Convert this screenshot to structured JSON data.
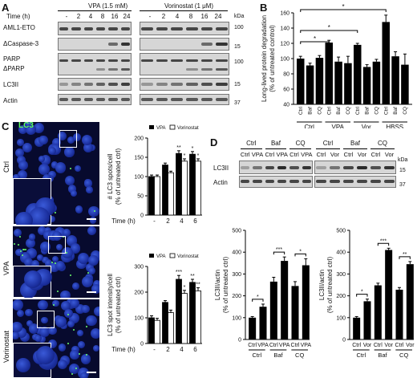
{
  "panels": {
    "A": "A",
    "B": "B",
    "C": "C",
    "D": "D"
  },
  "panelA": {
    "group1": "VPA (1.5 mM)",
    "group2": "Vorinostat (1 μM)",
    "time_label": "Time (h)",
    "times": [
      "-",
      "2",
      "4",
      "8",
      "16",
      "24"
    ],
    "kda": "kDa",
    "rows": [
      "AML1-ETO",
      "ΔCaspase-3",
      "PARP",
      "ΔPARP",
      "LC3II",
      "Actin"
    ],
    "mw": [
      "100",
      "15",
      "100",
      "15",
      "37"
    ]
  },
  "panelB": {
    "ylabel_1": "Long-lived protein degradation",
    "ylabel_2": "(% of untreated control)",
    "yticks": [
      "40",
      "60",
      "80",
      "100",
      "120",
      "140",
      "160"
    ],
    "bar_labels": [
      "Ctrl",
      "Baf",
      "CQ",
      "Ctrl",
      "Baf",
      "CQ",
      "Ctrl",
      "Baf",
      "CQ",
      "Ctrl",
      "Baf",
      "CQ"
    ],
    "groups": [
      "Ctrl",
      "VPA",
      "Vor",
      "HBSS"
    ],
    "star": "*"
  },
  "panelC": {
    "lc3_label": "LC3",
    "rows": [
      "Ctrl",
      "VPA",
      "Vorinostat"
    ],
    "legend_vpa": "VPA",
    "legend_vor": "Vorinostat",
    "chart1_ylabel_1": "# LC3 spots/cell",
    "chart1_ylabel_2": "(% of untreated ctrl)",
    "chart1_yticks": [
      "0",
      "50",
      "100",
      "150",
      "200"
    ],
    "chart2_ylabel_1": "LC3 spot intensity/cell",
    "chart2_ylabel_2": "(% of untreated ctrl)",
    "chart2_yticks": [
      "0",
      "100",
      "200",
      "300"
    ],
    "time_label": "Time (h)",
    "times": [
      "-",
      "2",
      "4",
      "6"
    ],
    "stars": {
      "s1": "**",
      "s2": "*",
      "s3": "*",
      "s4": "*",
      "s5": "***",
      "s6": "*",
      "s7": "**",
      "s8": "**"
    }
  },
  "panelD": {
    "blot_groups_left": [
      "Ctrl",
      "Baf",
      "CQ"
    ],
    "blot_lanes_left": [
      "Ctrl",
      "VPA",
      "Ctrl",
      "VPA",
      "Ctrl",
      "VPA"
    ],
    "blot_groups_right": [
      "Ctrl",
      "Baf",
      "CQ"
    ],
    "blot_lanes_right": [
      "Ctrl",
      "Vor",
      "Ctrl",
      "Vor",
      "Ctrl",
      "Vor"
    ],
    "rows": [
      "LC3II",
      "Actin"
    ],
    "kda": "kDa",
    "mw": [
      "15",
      "37"
    ],
    "ylabel_1": "LC3II/actin",
    "ylabel_2": "(% of untreated ctrl)",
    "yticks": [
      "0",
      "100",
      "200",
      "300",
      "400",
      "500"
    ],
    "left_lanes": [
      "Ctrl",
      "VPA",
      "Ctrl",
      "VPA",
      "Ctrl",
      "VPA"
    ],
    "right_lanes": [
      "Ctrl",
      "Vor",
      "Ctrl",
      "Vor",
      "Ctrl",
      "Vor"
    ],
    "groups": [
      "Ctrl",
      "Baf",
      "CQ"
    ],
    "stars": {
      "l1": "*",
      "l2": "***",
      "l3": "*",
      "r1": "*",
      "r2": "***",
      "r3": "**"
    }
  },
  "chart_data": [
    {
      "type": "bar",
      "panel": "B",
      "ylabel": "Long-lived protein degradation (% of untreated control)",
      "ylim": [
        40,
        160
      ],
      "categories": [
        "Ctrl",
        "Baf",
        "CQ",
        "Ctrl",
        "Baf",
        "CQ",
        "Ctrl",
        "Baf",
        "CQ",
        "Ctrl",
        "Baf",
        "CQ"
      ],
      "groups": [
        "Ctrl",
        "VPA",
        "Vor",
        "HBSS"
      ],
      "values": [
        100,
        91,
        101,
        121,
        96,
        94,
        118,
        89,
        96,
        148,
        103,
        92
      ],
      "errors": [
        3,
        3,
        3,
        3,
        6,
        9,
        2,
        3,
        3,
        9,
        6,
        14
      ]
    },
    {
      "type": "bar",
      "panel": "C-top",
      "ylabel": "# LC3 spots/cell (% of untreated ctrl)",
      "xlabel": "Time (h)",
      "ylim": [
        0,
        200
      ],
      "categories": [
        "-",
        "2",
        "4",
        "6"
      ],
      "series": [
        {
          "name": "VPA",
          "values": [
            100,
            130,
            160,
            158
          ],
          "errors": [
            4,
            5,
            7,
            7
          ]
        },
        {
          "name": "Vorinostat",
          "values": [
            100,
            110,
            140,
            140
          ],
          "errors": [
            4,
            4,
            6,
            6
          ]
        }
      ]
    },
    {
      "type": "bar",
      "panel": "C-bottom",
      "ylabel": "LC3 spot intensity/cell (% of untreated ctrl)",
      "xlabel": "Time (h)",
      "ylim": [
        0,
        300
      ],
      "categories": [
        "-",
        "2",
        "4",
        "6"
      ],
      "series": [
        {
          "name": "VPA",
          "values": [
            100,
            160,
            250,
            238
          ],
          "errors": [
            8,
            7,
            15,
            12
          ]
        },
        {
          "name": "Vorinostat",
          "values": [
            90,
            120,
            195,
            205
          ],
          "errors": [
            8,
            10,
            12,
            12
          ]
        }
      ]
    },
    {
      "type": "bar",
      "panel": "D-left",
      "ylabel": "LC3II/actin (% of untreated ctrl)",
      "ylim": [
        0,
        500
      ],
      "categories": [
        "Ctrl",
        "VPA",
        "Ctrl",
        "VPA",
        "Ctrl",
        "VPA"
      ],
      "groups": [
        "Ctrl",
        "Baf",
        "CQ"
      ],
      "values": [
        100,
        150,
        265,
        360,
        245,
        340
      ],
      "errors": [
        5,
        12,
        20,
        18,
        20,
        30
      ]
    },
    {
      "type": "bar",
      "panel": "D-right",
      "ylabel": "LC3II/actin (% of untreated ctrl)",
      "ylim": [
        0,
        500
      ],
      "categories": [
        "Ctrl",
        "Vor",
        "Ctrl",
        "Vor",
        "Ctrl",
        "Vor"
      ],
      "groups": [
        "Ctrl",
        "Baf",
        "CQ"
      ],
      "values": [
        100,
        175,
        248,
        410,
        228,
        345
      ],
      "errors": [
        5,
        10,
        10,
        8,
        10,
        12
      ]
    }
  ]
}
